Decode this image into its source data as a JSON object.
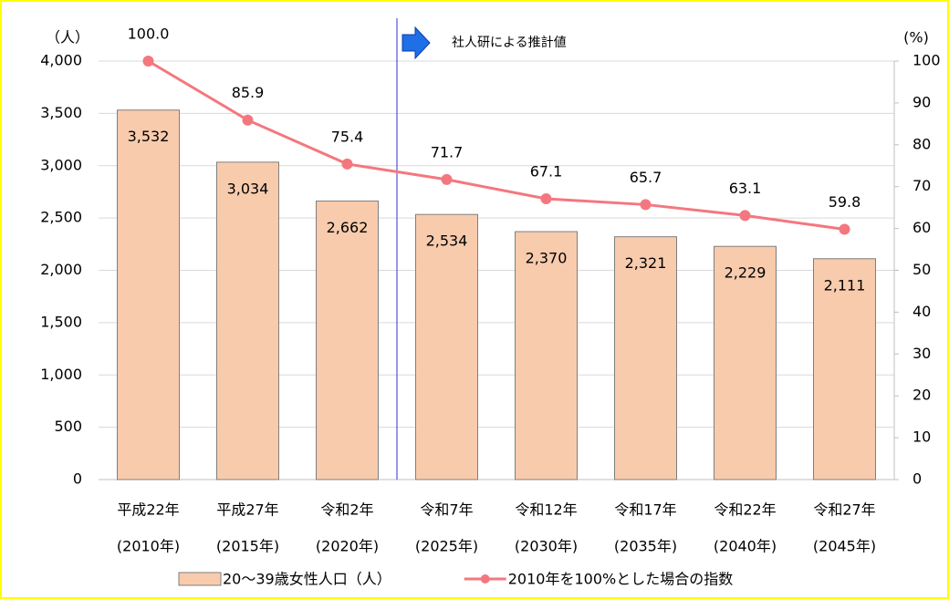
{
  "chart_data": {
    "type": "bar-line",
    "categories": [
      [
        "平成22年",
        "(2010年)"
      ],
      [
        "平成27年",
        "(2015年)"
      ],
      [
        "令和2年",
        "(2020年)"
      ],
      [
        "令和7年",
        "(2025年)"
      ],
      [
        "令和12年",
        "(2030年)"
      ],
      [
        "令和17年",
        "(2035年)"
      ],
      [
        "令和22年",
        "(2040年)"
      ],
      [
        "令和27年",
        "(2045年)"
      ]
    ],
    "series": [
      {
        "name": "20～39歳女性人口（人）",
        "type": "bar",
        "color": "#f8cbad",
        "values": [
          3532,
          3034,
          2662,
          2534,
          2370,
          2321,
          2229,
          2111
        ],
        "value_labels": [
          "3,532",
          "3,034",
          "2,662",
          "2,534",
          "2,370",
          "2,321",
          "2,229",
          "2,111"
        ]
      },
      {
        "name": "2010年を100%とした場合の指数",
        "type": "line",
        "axis": "y2",
        "color": "#f4777f",
        "values": [
          100.0,
          85.9,
          75.4,
          71.7,
          67.1,
          65.7,
          63.1,
          59.8
        ],
        "value_labels": [
          "100.0",
          "85.9",
          "75.4",
          "71.7",
          "67.1",
          "65.7",
          "63.1",
          "59.8"
        ]
      }
    ],
    "ylabel": "（人）",
    "y2label": "(%)",
    "annotation": "社人研による推計値",
    "ylim": [
      0,
      4000
    ],
    "yticks": [
      0,
      500,
      {
        "value": 1000,
        "label": "1,000"
      },
      {
        "value": 1500,
        "label": "1,500"
      },
      {
        "value": 2000,
        "label": "2,000"
      },
      {
        "value": 2500,
        "label": "2,500"
      },
      {
        "value": 3000,
        "label": "3,000"
      },
      {
        "value": 3500,
        "label": "3,500"
      },
      {
        "value": 4000,
        "label": "4,000"
      }
    ],
    "y2lim": [
      0,
      100
    ],
    "y2ticks": [
      0,
      10,
      20,
      30,
      40,
      50,
      60,
      70,
      80,
      90,
      100
    ],
    "grid": true
  }
}
